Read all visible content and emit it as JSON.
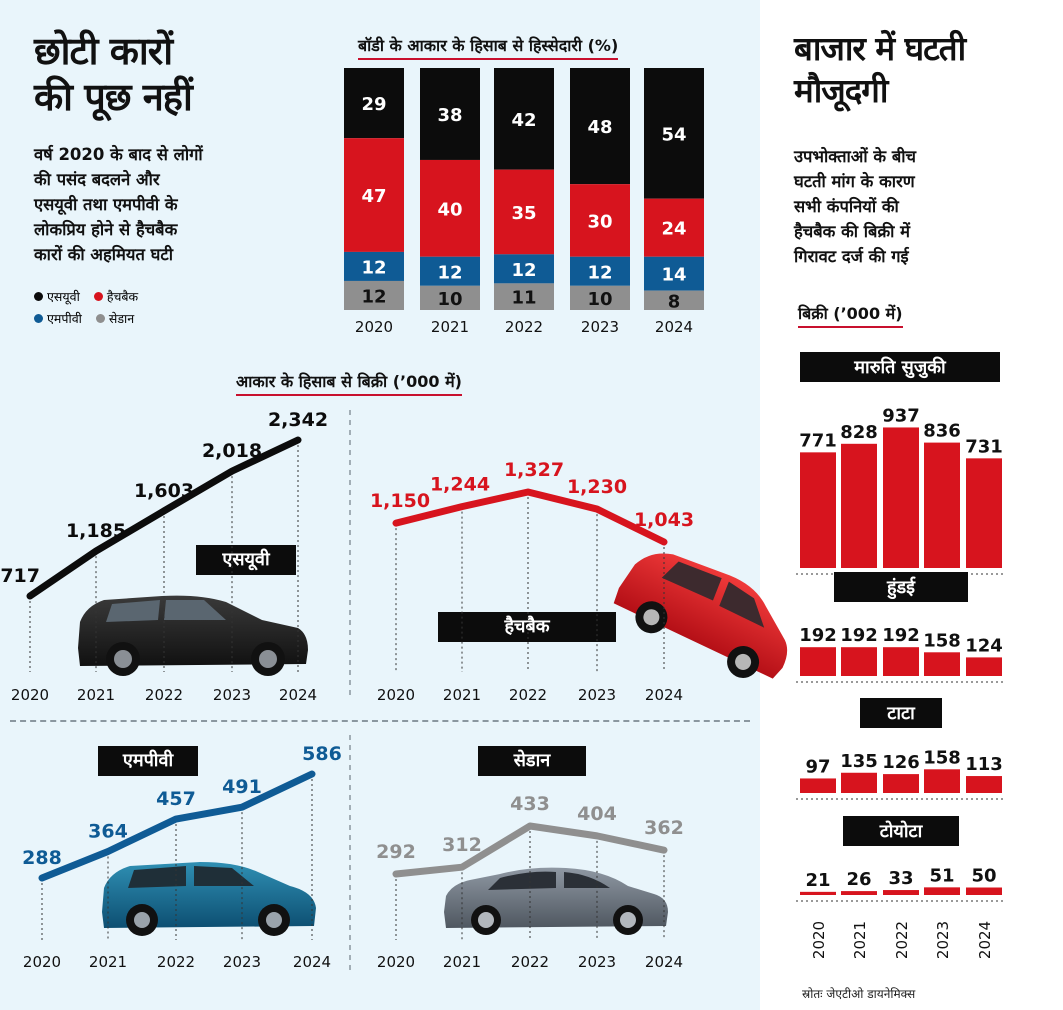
{
  "header": {
    "title_line1": "छोटी कारों",
    "title_line2": "की पूछ नहीं",
    "subtitle_lines": [
      "वर्ष 2020 के बाद से लोगों",
      "की पसंद बदलने और",
      "एसयूवी तथा एमपीवी के",
      "लोकप्रिय होने से हैचबैक",
      "कारों की अहमियत घटी"
    ]
  },
  "legend": {
    "suv": "एसयूवी",
    "hatchback": "हैचबैक",
    "mpv": "एमपीवी",
    "sedan": "सेडान"
  },
  "colors": {
    "suv": "#0c0c0c",
    "hatchback": "#d7141e",
    "mpv": "#0f5b95",
    "sedan": "#8f8f8f",
    "background_left": "#e9f5fb",
    "accent": "#c8102e"
  },
  "right_panel": {
    "title_line1": "बाजार में घटती",
    "title_line2": "मौजूदगी",
    "desc_lines": [
      "उपभोक्ताओं के बीच",
      "घटती मांग के कारण",
      "सभी कंपनियों की",
      "हैचबैक की बिक्री में",
      "गिरावट दर्ज की गई"
    ],
    "sales_label": "बिक्री (’000 में)",
    "source": "स्रोतः जेएटीओ डायनेमिक्स"
  },
  "chart_data": [
    {
      "id": "share",
      "type": "bar",
      "stacked": true,
      "title": "बॉडी के आकार के हिसाब से हिस्सेदारी (%)",
      "categories": [
        "2020",
        "2021",
        "2022",
        "2023",
        "2024"
      ],
      "series": [
        {
          "name": "एसयूवी",
          "key": "suv",
          "values": [
            29,
            38,
            42,
            48,
            54
          ]
        },
        {
          "name": "हैचबैक",
          "key": "hatchback",
          "values": [
            47,
            40,
            35,
            30,
            24
          ]
        },
        {
          "name": "एमपीवी",
          "key": "mpv",
          "values": [
            12,
            12,
            12,
            12,
            14
          ]
        },
        {
          "name": "सेडान",
          "key": "sedan",
          "values": [
            12,
            10,
            11,
            10,
            8
          ]
        }
      ]
    },
    {
      "id": "suv",
      "type": "line",
      "title": "आकार के हिसाब से बिक्री (’000 में)",
      "series_label": "एसयूवी",
      "color_key": "suv",
      "x": [
        "2020",
        "2021",
        "2022",
        "2023",
        "2024"
      ],
      "values": [
        717,
        1185,
        1603,
        2018,
        2342
      ],
      "labels": [
        "717",
        "1,185",
        "1,603",
        "2,018",
        "2,342"
      ]
    },
    {
      "id": "hatchback",
      "type": "line",
      "series_label": "हैचबैक",
      "color_key": "hatchback",
      "x": [
        "2020",
        "2021",
        "2022",
        "2023",
        "2024"
      ],
      "values": [
        1150,
        1244,
        1327,
        1230,
        1043
      ],
      "labels": [
        "1,150",
        "1,244",
        "1,327",
        "1,230",
        "1,043"
      ]
    },
    {
      "id": "mpv",
      "type": "line",
      "series_label": "एमपीवी",
      "color_key": "mpv",
      "x": [
        "2020",
        "2021",
        "2022",
        "2023",
        "2024"
      ],
      "values": [
        288,
        364,
        457,
        491,
        586
      ],
      "labels": [
        "288",
        "364",
        "457",
        "491",
        "586"
      ]
    },
    {
      "id": "sedan",
      "type": "line",
      "series_label": "सेडान",
      "color_key": "sedan",
      "x": [
        "2020",
        "2021",
        "2022",
        "2023",
        "2024"
      ],
      "values": [
        292,
        312,
        433,
        404,
        362
      ],
      "labels": [
        "292",
        "312",
        "433",
        "404",
        "362"
      ]
    },
    {
      "id": "brands",
      "type": "bar",
      "x": [
        "2020",
        "2021",
        "2022",
        "2023",
        "2024"
      ],
      "groups": [
        {
          "name": "मारुति सुजुकी",
          "values": [
            771,
            828,
            937,
            836,
            731
          ]
        },
        {
          "name": "हुंडई",
          "values": [
            192,
            192,
            192,
            158,
            124
          ]
        },
        {
          "name": "टाटा",
          "values": [
            97,
            135,
            126,
            158,
            113
          ]
        },
        {
          "name": "टोयोटा",
          "values": [
            21,
            26,
            33,
            51,
            50
          ]
        }
      ]
    }
  ]
}
